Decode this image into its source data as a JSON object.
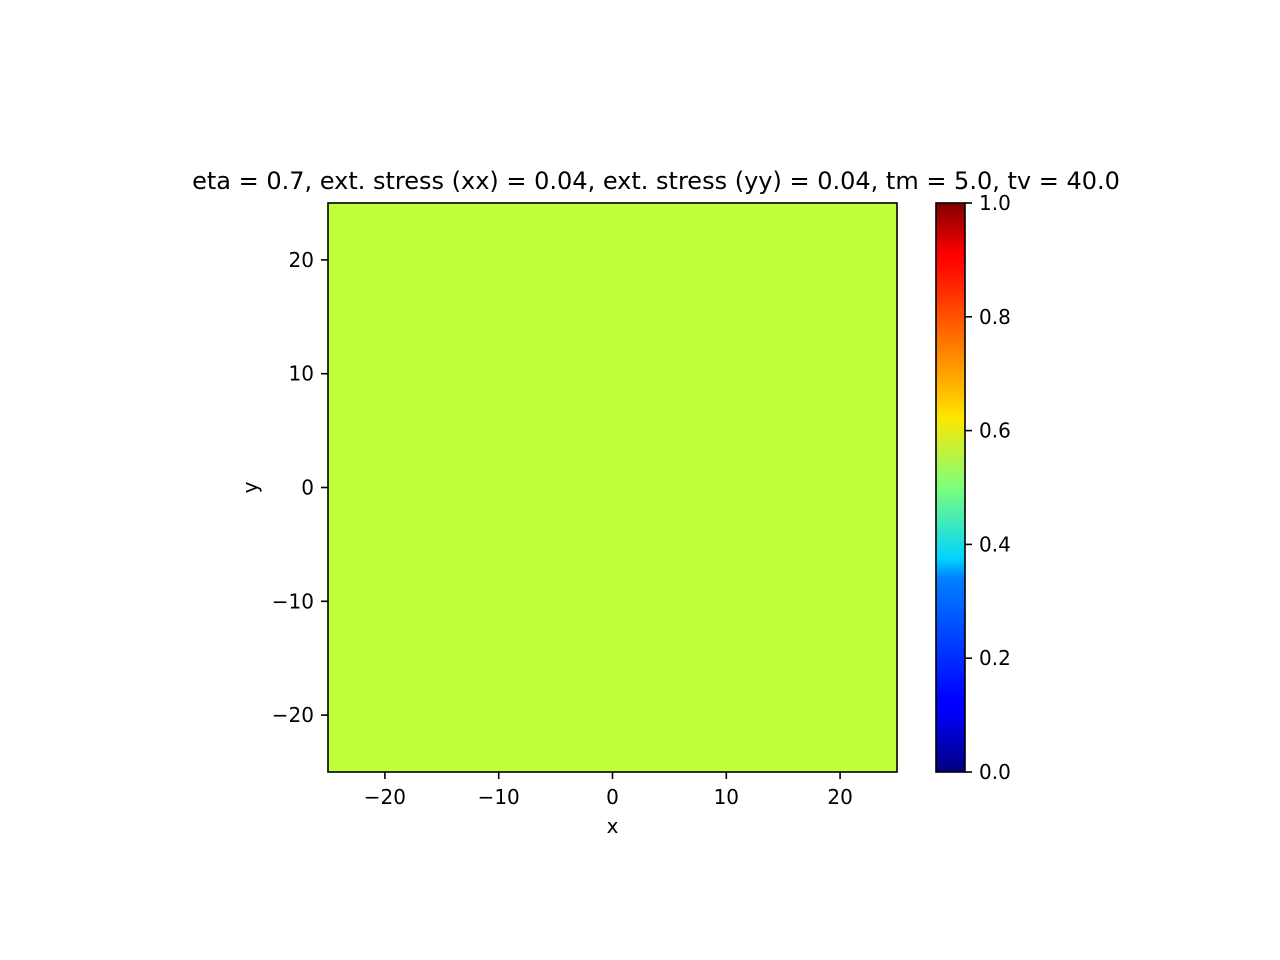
{
  "chart_data": {
    "type": "heatmap",
    "title": "eta = 0.7, ext. stress (xx) = 0.04, ext. stress (yy) = 0.04, tm = 5.0, tv = 40.0",
    "xlabel": "x",
    "ylabel": "y",
    "xlim": [
      -25,
      25
    ],
    "ylim": [
      -25,
      25
    ],
    "xticks": [
      -20,
      -10,
      0,
      10,
      20
    ],
    "yticks": [
      -20,
      -10,
      0,
      10,
      20
    ],
    "xtick_labels": [
      "−20",
      "−10",
      "0",
      "10",
      "20"
    ],
    "ytick_labels": [
      "−20",
      "−10",
      "0",
      "10",
      "20"
    ],
    "field_value": 0.6,
    "grid": false,
    "colormap": "jet",
    "colorbar": {
      "range": [
        0,
        1
      ],
      "ticks": [
        0.0,
        0.2,
        0.4,
        0.6,
        0.8,
        1.0
      ],
      "tick_labels": [
        "0.0",
        "0.2",
        "0.4",
        "0.6",
        "0.8",
        "1.0"
      ],
      "placement": "right"
    },
    "colors": {
      "field": "#c0ff3a"
    }
  }
}
